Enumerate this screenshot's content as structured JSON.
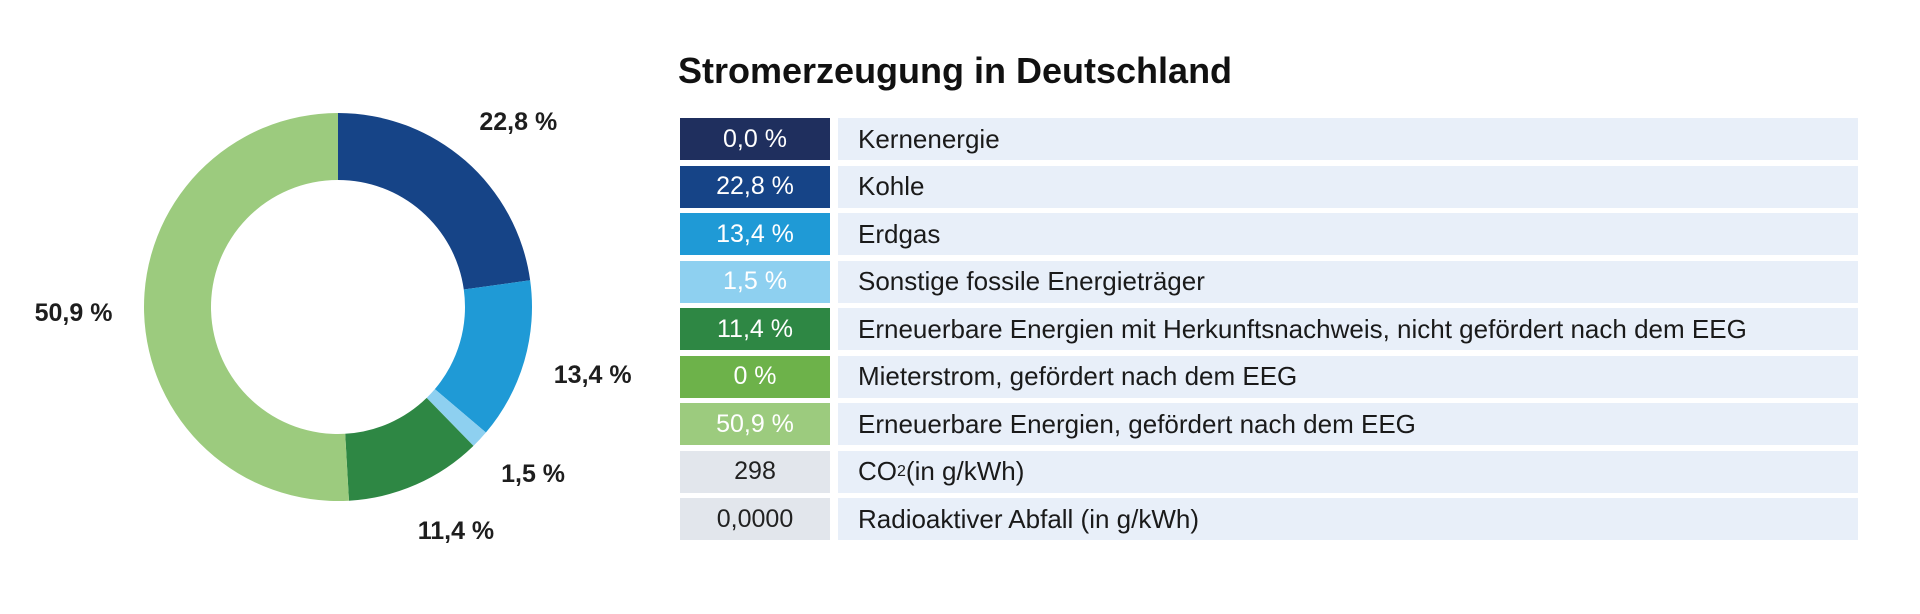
{
  "chart_data": {
    "type": "pie",
    "title": "Stromerzeugung in Deutschland",
    "slices": [
      {
        "name": "Kernenergie",
        "value": 0.0,
        "label": "0,0 %",
        "color": "#1f2f5e"
      },
      {
        "name": "Kohle",
        "value": 22.8,
        "label": "22,8 %",
        "color": "#164487"
      },
      {
        "name": "Erdgas",
        "value": 13.4,
        "label": "13,4 %",
        "color": "#1f9ad6"
      },
      {
        "name": "Sonstige fossile Energieträger",
        "value": 1.5,
        "label": "1,5 %",
        "color": "#8ed0f0"
      },
      {
        "name": "Erneuerbare Energien mit Herkunftsnachweis, nicht gefördert nach dem EEG",
        "value": 11.4,
        "label": "11,4 %",
        "color": "#2e8744"
      },
      {
        "name": "Mieterstrom, gefördert nach dem EEG",
        "value": 0,
        "label": "0 %",
        "color": "#6db24a"
      },
      {
        "name": "Erneuerbare Energien, gefördert nach dem EEG",
        "value": 50.9,
        "label": "50,9 %",
        "color": "#9ccb7e"
      }
    ],
    "extra_rows": [
      {
        "value": "298",
        "label_main": "CO",
        "label_sub": "2",
        "label_rest": " (in g/kWh)"
      },
      {
        "value": "0,0000",
        "label_main": "Radioaktiver Abfall (in g/kWh)"
      }
    ],
    "legend": "right"
  }
}
